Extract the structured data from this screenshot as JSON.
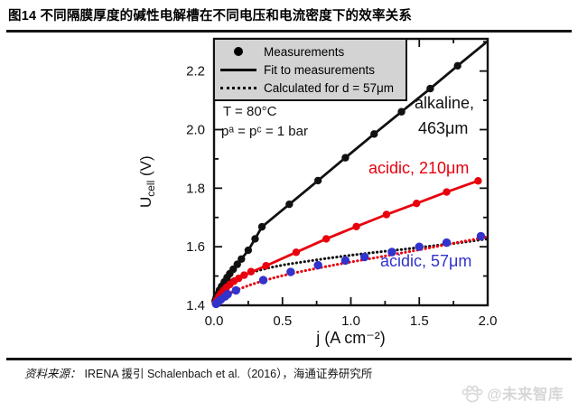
{
  "page": {
    "title": "图14 不同隔膜厚度的碱性电解槽在不同电压和电流密度下的效率关系",
    "source": {
      "label": "资料来源：",
      "text": "IRENA 援引 Schalenbach et al.（2016），海通证券研究所"
    },
    "watermark": "@未来智库"
  },
  "colors": {
    "black": "#111111",
    "red": "#e8000d",
    "blue": "#3232cd",
    "legend_bg": "#d3d3d3",
    "watermark": "#d7d7d7"
  },
  "chart_data": {
    "type": "scatter",
    "title": "",
    "xlabel": "j (A cm⁻²)",
    "ylabel": {
      "main": "U",
      "sub": "cell",
      "unit": " (V)"
    },
    "xlim": [
      0,
      2.0
    ],
    "ylim": [
      1.4,
      2.31
    ],
    "grid": false,
    "legend_position": "top-left",
    "x_tick_values": [
      0.0,
      0.5,
      1.0,
      1.5,
      2.0
    ],
    "x_tick_labels": [
      "0.0",
      "0.5",
      "1.0",
      "1.5",
      "2.0"
    ],
    "x_minor_ticks": [
      0.25,
      0.75,
      1.25,
      1.75
    ],
    "y_tick_values": [
      1.4,
      1.6,
      1.8,
      2.0,
      2.2
    ],
    "y_tick_labels": [
      "1.4",
      "1.6",
      "1.8",
      "2.0",
      "2.2"
    ],
    "y_minor_ticks": [
      1.5,
      1.7,
      1.9,
      2.1,
      2.3
    ],
    "legend": [
      {
        "marker": "dot",
        "label": "Measurements"
      },
      {
        "marker": "solid-line",
        "label": "Fit to measurements"
      },
      {
        "marker": "dotted-line",
        "label": "Calculated for d = 57μm"
      }
    ],
    "conditions": {
      "temperature": "T = 80°C",
      "pressure": "pᵃ = pᶜ = 1 bar"
    },
    "series_labels": [
      {
        "line1": "alkaline,",
        "line2": "463μm",
        "color": "#111111"
      },
      {
        "text": "acidic, 210μm",
        "color": "#e8000d"
      },
      {
        "text": "acidic, 57μm",
        "color": "#3232cd"
      }
    ],
    "series": [
      {
        "name": "calculated-d57um-alkaline",
        "draw": "dotted",
        "color": "#111111",
        "points": [
          [
            0.09,
            1.478
          ],
          [
            0.15,
            1.492
          ],
          [
            0.22,
            1.504
          ],
          [
            0.3,
            1.516
          ],
          [
            0.4,
            1.528
          ],
          [
            0.52,
            1.539
          ],
          [
            0.66,
            1.549
          ],
          [
            0.82,
            1.56
          ],
          [
            1.0,
            1.571
          ],
          [
            1.2,
            1.582
          ],
          [
            1.4,
            1.592
          ],
          [
            1.6,
            1.603
          ],
          [
            1.8,
            1.614
          ],
          [
            2.0,
            1.627
          ]
        ]
      },
      {
        "name": "calculated-d57um-acidic",
        "draw": "dotted",
        "color": "#e8000d",
        "points": [
          [
            0.03,
            1.413
          ],
          [
            0.07,
            1.428
          ],
          [
            0.12,
            1.442
          ],
          [
            0.18,
            1.455
          ],
          [
            0.26,
            1.469
          ],
          [
            0.36,
            1.484
          ],
          [
            0.48,
            1.499
          ],
          [
            0.62,
            1.514
          ],
          [
            0.78,
            1.529
          ],
          [
            0.95,
            1.544
          ],
          [
            1.15,
            1.56
          ],
          [
            1.35,
            1.577
          ],
          [
            1.55,
            1.594
          ],
          [
            1.75,
            1.612
          ],
          [
            1.9,
            1.625
          ],
          [
            2.0,
            1.634
          ]
        ]
      },
      {
        "name": "alkaline-463um-fit",
        "draw": "line",
        "color": "#111111",
        "points": [
          [
            0.005,
            1.408
          ],
          [
            0.02,
            1.432
          ],
          [
            0.05,
            1.462
          ],
          [
            0.09,
            1.492
          ],
          [
            0.14,
            1.523
          ],
          [
            0.2,
            1.558
          ],
          [
            0.25,
            1.588
          ],
          [
            0.3,
            1.627
          ],
          [
            0.35,
            1.668
          ],
          [
            0.55,
            1.745
          ],
          [
            0.76,
            1.826
          ],
          [
            0.96,
            1.904
          ],
          [
            1.17,
            1.985
          ],
          [
            1.37,
            2.061
          ],
          [
            1.58,
            2.14
          ],
          [
            1.78,
            2.218
          ],
          [
            2.0,
            2.302
          ]
        ]
      },
      {
        "name": "acidic-210um-fit",
        "draw": "line",
        "color": "#e8000d",
        "points": [
          [
            0.005,
            1.402
          ],
          [
            0.02,
            1.418
          ],
          [
            0.05,
            1.44
          ],
          [
            0.09,
            1.461
          ],
          [
            0.145,
            1.482
          ],
          [
            0.22,
            1.503
          ],
          [
            0.38,
            1.535
          ],
          [
            0.6,
            1.581
          ],
          [
            0.82,
            1.627
          ],
          [
            1.04,
            1.669
          ],
          [
            1.26,
            1.71
          ],
          [
            1.48,
            1.748
          ],
          [
            1.7,
            1.787
          ],
          [
            1.93,
            1.825
          ]
        ]
      },
      {
        "name": "alkaline-463um-measurements",
        "draw": "dots",
        "r": 4.2,
        "color": "#111111",
        "points": [
          [
            0.008,
            1.415
          ],
          [
            0.015,
            1.425
          ],
          [
            0.025,
            1.437
          ],
          [
            0.04,
            1.452
          ],
          [
            0.055,
            1.465
          ],
          [
            0.075,
            1.48
          ],
          [
            0.095,
            1.495
          ],
          [
            0.115,
            1.508
          ],
          [
            0.14,
            1.523
          ],
          [
            0.17,
            1.54
          ],
          [
            0.2,
            1.558
          ],
          [
            0.25,
            1.588
          ],
          [
            0.3,
            1.627
          ],
          [
            0.35,
            1.668
          ],
          [
            0.55,
            1.745
          ],
          [
            0.76,
            1.826
          ],
          [
            0.96,
            1.904
          ],
          [
            1.17,
            1.985
          ],
          [
            1.37,
            2.061
          ],
          [
            1.58,
            2.14
          ],
          [
            1.78,
            2.218
          ]
        ]
      },
      {
        "name": "acidic-210um-measurements",
        "draw": "dots",
        "r": 4.2,
        "color": "#e8000d",
        "points": [
          [
            0.01,
            1.408
          ],
          [
            0.02,
            1.418
          ],
          [
            0.035,
            1.43
          ],
          [
            0.05,
            1.44
          ],
          [
            0.07,
            1.451
          ],
          [
            0.09,
            1.461
          ],
          [
            0.115,
            1.471
          ],
          [
            0.145,
            1.482
          ],
          [
            0.18,
            1.492
          ],
          [
            0.22,
            1.503
          ],
          [
            0.27,
            1.515
          ],
          [
            0.38,
            1.535
          ],
          [
            0.6,
            1.581
          ],
          [
            0.82,
            1.627
          ],
          [
            1.04,
            1.669
          ],
          [
            1.26,
            1.71
          ],
          [
            1.48,
            1.748
          ],
          [
            1.7,
            1.787
          ],
          [
            1.93,
            1.825
          ]
        ]
      },
      {
        "name": "acidic-57um-measurements",
        "draw": "dots",
        "r": 4.7,
        "color": "#3232cd",
        "points": [
          [
            0.015,
            1.405
          ],
          [
            0.03,
            1.412
          ],
          [
            0.05,
            1.42
          ],
          [
            0.08,
            1.43
          ],
          [
            0.1,
            1.438
          ],
          [
            0.16,
            1.451
          ],
          [
            0.36,
            1.486
          ],
          [
            0.56,
            1.514
          ],
          [
            0.76,
            1.537
          ],
          [
            0.96,
            1.553
          ],
          [
            1.1,
            1.565
          ],
          [
            1.3,
            1.582
          ],
          [
            1.5,
            1.6
          ],
          [
            1.7,
            1.614
          ],
          [
            1.95,
            1.636
          ]
        ]
      }
    ]
  }
}
